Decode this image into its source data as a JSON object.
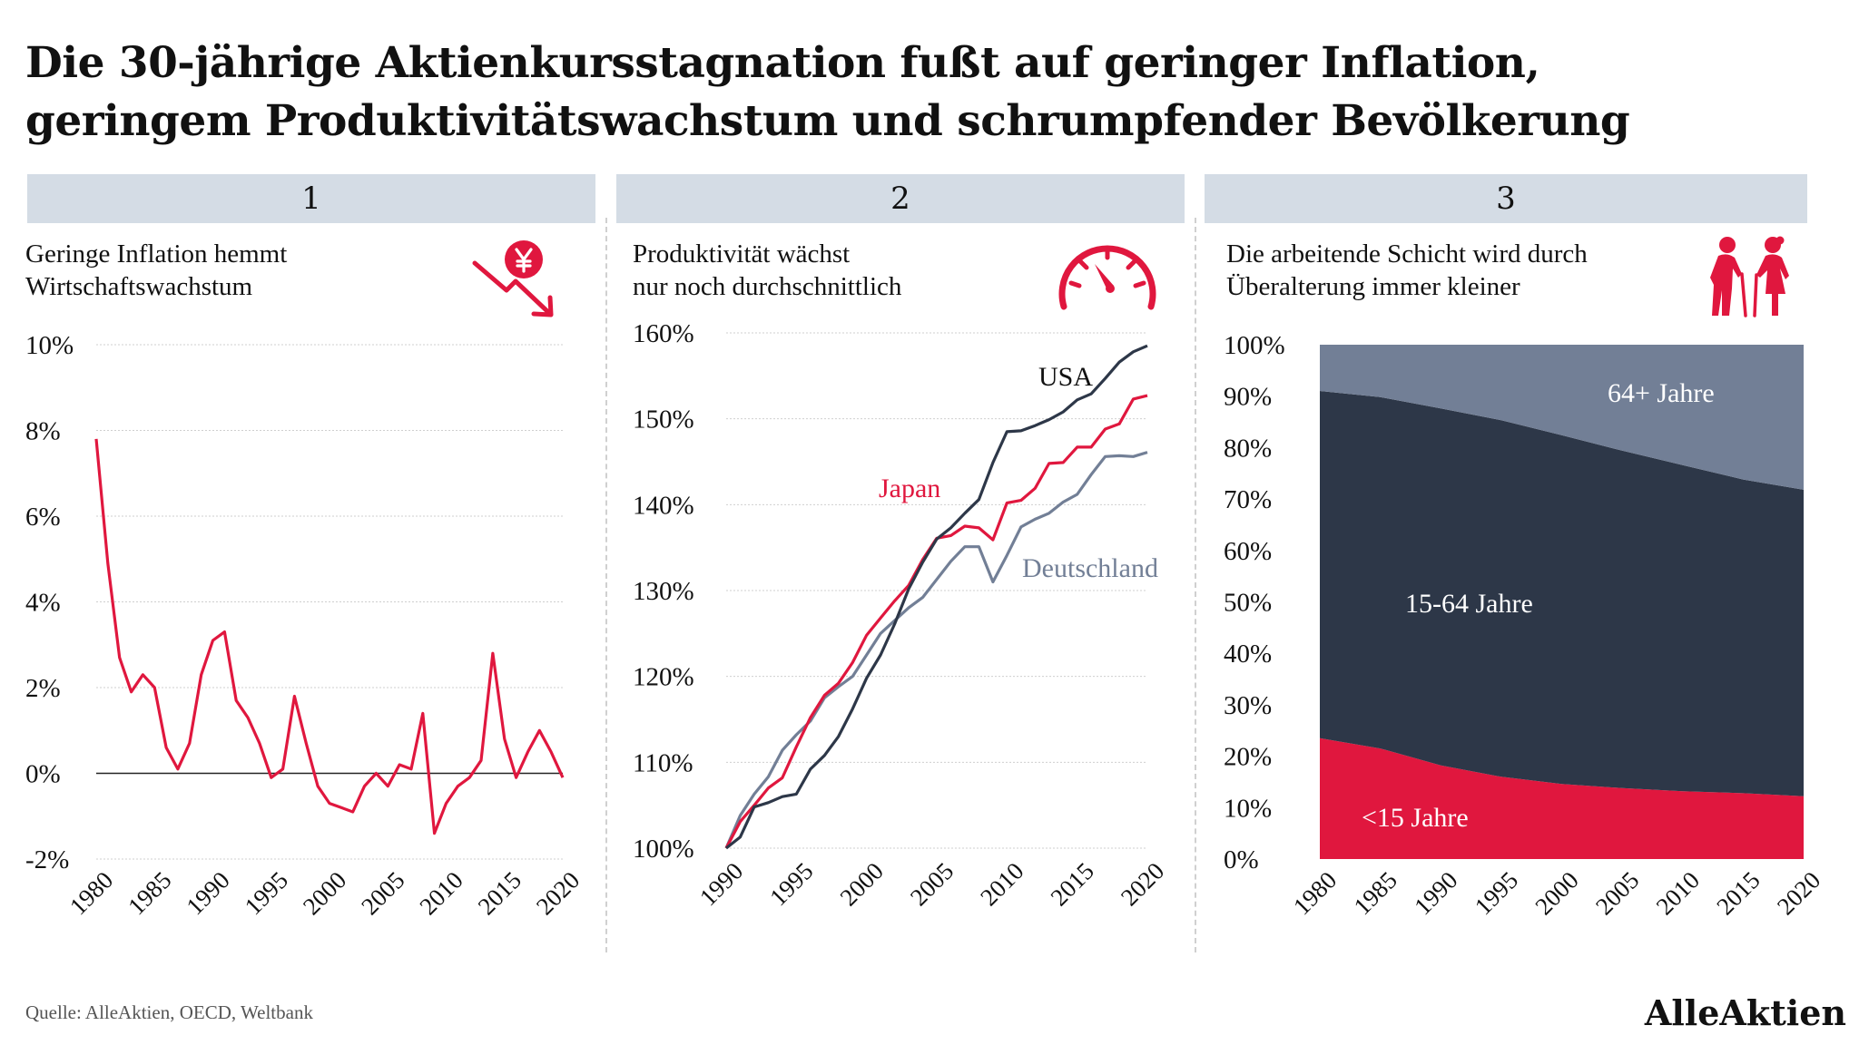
{
  "title_lines": [
    "Die 30-jährige Aktienkursstagnation fußt auf geringer Inflation,",
    "geringem Produktivitätswachstum und schrumpfender Bevölkerung"
  ],
  "panels": [
    {
      "number": "1",
      "subtitle_lines": [
        "Geringe Inflation hemmt",
        "Wirtschaftswachstum"
      ],
      "icon": "yen-falling-arrow-icon"
    },
    {
      "number": "2",
      "subtitle_lines": [
        "Produktivität wächst",
        "nur noch durchschnittlich"
      ],
      "icon": "speedometer-icon"
    },
    {
      "number": "3",
      "subtitle_lines": [
        "Die arbeitende Schicht wird durch",
        "Überalterung immer kleiner"
      ],
      "icon": "elderly-couple-icon"
    }
  ],
  "colors": {
    "red": "#e0173e",
    "navy": "#2d3748",
    "slate": "#727f96",
    "grid": "#cccccc",
    "header_bg": "#d4dce5"
  },
  "source": "Quelle: AlleAktien, OECD, Weltbank",
  "brand": "AlleAktien",
  "chart_data": [
    {
      "type": "line",
      "title": "Geringe Inflation hemmt Wirtschaftswachstum",
      "ylim": [
        -2,
        10
      ],
      "y_ticks": [
        -2,
        0,
        2,
        4,
        6,
        8,
        10
      ],
      "y_tick_labels": [
        "-2%",
        "0%",
        "2%",
        "4%",
        "6%",
        "8%",
        "10%"
      ],
      "x_ticks": [
        1980,
        1985,
        1990,
        1995,
        2000,
        2005,
        2010,
        2015,
        2020
      ],
      "x_tick_labels": [
        "1980",
        "1985",
        "1990",
        "1995",
        "2000",
        "2005",
        "2010",
        "2015",
        "2020"
      ],
      "xlim": [
        1980,
        2020
      ],
      "series": [
        {
          "color": "#e0173e",
          "x": [
            1980,
            1981,
            1982,
            1983,
            1984,
            1985,
            1986,
            1987,
            1988,
            1989,
            1990,
            1991,
            1992,
            1993,
            1994,
            1995,
            1996,
            1997,
            1998,
            1999,
            2000,
            2001,
            2002,
            2003,
            2004,
            2005,
            2006,
            2007,
            2008,
            2009,
            2010,
            2011,
            2012,
            2013,
            2014,
            2015,
            2016,
            2017,
            2018,
            2019,
            2020
          ],
          "y": [
            7.8,
            4.9,
            2.7,
            1.9,
            2.3,
            2.0,
            0.6,
            0.1,
            0.7,
            2.3,
            3.1,
            3.3,
            1.7,
            1.3,
            0.7,
            -0.1,
            0.1,
            1.8,
            0.7,
            -0.3,
            -0.7,
            -0.8,
            -0.9,
            -0.3,
            0.0,
            -0.3,
            0.2,
            0.1,
            1.4,
            -1.4,
            -0.7,
            -0.3,
            -0.1,
            0.3,
            2.8,
            0.8,
            -0.1,
            0.5,
            1.0,
            0.5,
            -0.1
          ]
        }
      ]
    },
    {
      "type": "line",
      "title": "Produktivität wächst nur noch durchschnittlich",
      "ylim": [
        100,
        160
      ],
      "y_ticks": [
        100,
        110,
        120,
        130,
        140,
        150,
        160
      ],
      "y_tick_labels": [
        "100%",
        "110%",
        "120%",
        "130%",
        "140%",
        "150%",
        "160%"
      ],
      "x_ticks": [
        1990,
        1995,
        2000,
        2005,
        2010,
        2015,
        2020
      ],
      "x_tick_labels": [
        "1990",
        "1995",
        "2000",
        "2005",
        "2010",
        "2015",
        "2020"
      ],
      "xlim": [
        1990,
        2020
      ],
      "series": [
        {
          "name": "USA",
          "color": "#2d3748",
          "x": [
            1990,
            1991,
            1992,
            1993,
            1994,
            1995,
            1996,
            1997,
            1998,
            1999,
            2000,
            2001,
            2002,
            2003,
            2004,
            2005,
            2006,
            2007,
            2008,
            2009,
            2010,
            2011,
            2012,
            2013,
            2014,
            2015,
            2016,
            2017,
            2018,
            2019,
            2020
          ],
          "y": [
            100,
            101.3,
            104.8,
            105.3,
            106.0,
            106.3,
            109.2,
            110.8,
            113.0,
            116.2,
            119.8,
            122.5,
            126.1,
            130.2,
            133.3,
            136.0,
            137.3,
            139.0,
            140.6,
            144.9,
            148.5,
            148.6,
            149.2,
            149.9,
            150.8,
            152.2,
            152.9,
            154.7,
            156.6,
            157.8,
            158.5
          ]
        },
        {
          "name": "Japan",
          "color": "#e0173e",
          "x": [
            1990,
            1991,
            1992,
            1993,
            1994,
            1995,
            1996,
            1997,
            1998,
            1999,
            2000,
            2001,
            2002,
            2003,
            2004,
            2005,
            2006,
            2007,
            2008,
            2009,
            2010,
            2011,
            2012,
            2013,
            2014,
            2015,
            2016,
            2017,
            2018,
            2019,
            2020
          ],
          "y": [
            100,
            103.1,
            105.0,
            107.0,
            108.2,
            111.8,
            115.2,
            117.8,
            119.2,
            121.6,
            124.8,
            126.8,
            128.8,
            130.6,
            133.6,
            136.1,
            136.4,
            137.5,
            137.3,
            135.9,
            140.2,
            140.5,
            141.9,
            144.8,
            144.9,
            146.7,
            146.7,
            148.8,
            149.4,
            152.3,
            152.7
          ]
        },
        {
          "name": "Deutschland",
          "color": "#727f96",
          "x": [
            1990,
            1991,
            1992,
            1993,
            1994,
            1995,
            1996,
            1997,
            1998,
            1999,
            2000,
            2001,
            2002,
            2003,
            2004,
            2005,
            2006,
            2007,
            2008,
            2009,
            2010,
            2011,
            2012,
            2013,
            2014,
            2015,
            2016,
            2017,
            2018,
            2019,
            2020
          ],
          "y": [
            100,
            103.8,
            106.3,
            108.3,
            111.4,
            113.2,
            114.8,
            117.5,
            118.8,
            120.0,
            122.5,
            125.0,
            126.5,
            128.0,
            129.2,
            131.3,
            133.4,
            135.1,
            135.1,
            131.0,
            134.1,
            137.4,
            138.3,
            139.0,
            140.3,
            141.2,
            143.5,
            145.6,
            145.7,
            145.6,
            146.1
          ]
        }
      ]
    },
    {
      "type": "area",
      "title": "Die arbeitende Schicht wird durch Überalterung immer kleiner",
      "stacked": true,
      "ylim": [
        0,
        100
      ],
      "y_ticks": [
        0,
        10,
        20,
        30,
        40,
        50,
        60,
        70,
        80,
        90,
        100
      ],
      "y_tick_labels": [
        "0%",
        "10%",
        "20%",
        "30%",
        "40%",
        "50%",
        "60%",
        "70%",
        "80%",
        "90%",
        "100%"
      ],
      "x_ticks": [
        1980,
        1985,
        1990,
        1995,
        2000,
        2005,
        2010,
        2015,
        2020
      ],
      "x_tick_labels": [
        "1980",
        "1985",
        "1990",
        "1995",
        "2000",
        "2005",
        "2010",
        "2015",
        "2020"
      ],
      "xlim": [
        1980,
        2020
      ],
      "x": [
        1980,
        1985,
        1990,
        1995,
        2000,
        2005,
        2010,
        2015,
        2020
      ],
      "series": [
        {
          "name": "<15 Jahre",
          "color": "#e0173e",
          "values": [
            23.5,
            21.5,
            18.2,
            16.0,
            14.6,
            13.8,
            13.2,
            12.8,
            12.2
          ]
        },
        {
          "name": "15-64 Jahre",
          "color": "#2d3748",
          "values": [
            67.5,
            68.3,
            69.4,
            69.3,
            67.8,
            65.6,
            63.4,
            61.0,
            59.6
          ]
        },
        {
          "name": "64+ Jahre",
          "color": "#727f96",
          "values": [
            9.0,
            10.2,
            12.4,
            14.7,
            17.6,
            20.6,
            23.4,
            26.2,
            28.2
          ]
        }
      ]
    }
  ]
}
